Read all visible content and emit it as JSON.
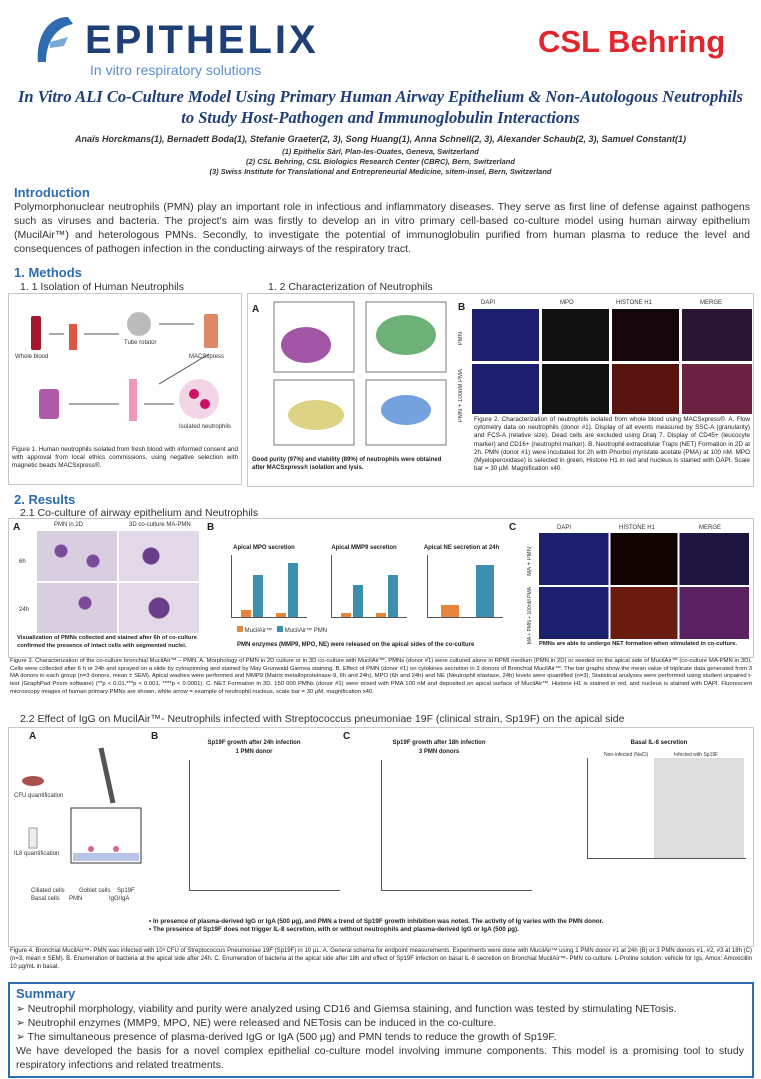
{
  "header": {
    "logo_left": "EPITHELIX",
    "logo_tagline": "In vitro respiratory solutions",
    "logo_right": "CSL Behring",
    "title": "In Vitro ALI Co-Culture Model Using Primary Human Airway Epithelium & Non-Autologous Neutrophils to Study Host-Pathogen and Immunoglobulin Interactions",
    "authors": "Anaïs Horckmans(1), Bernadett Boda(1), Stefanie Graeter(2, 3), Song Huang(1), Anna Schnell(2, 3), Alexander Schaub(2, 3), Samuel Constant(1)",
    "affiliations": [
      "(1) Epithelix Sàrl, Plan-les-Ouates, Geneva, Switzerland",
      "(2) CSL Behring, CSL Biologics Research Center (CBRC), Bern, Switzerland",
      "(3) Swiss Institute for Translational and Entrepreneurial Medicine, sitem-insel, Bern, Switzerland"
    ]
  },
  "intro": {
    "heading": "Introduction",
    "text": "Polymorphonuclear neutrophils (PMN) play an important role in infectious and inflammatory diseases. They serve as first line of defense against pathogens such as viruses and bacteria. The project's aim was firstly to develop an in vitro primary cell-based co-culture model using human airway epithelium (MucilAir™) and heterologous PMNs. Secondly, to investigate the potential of immunoglobulin purified from human plasma to reduce the level and consequences of pathogen infection in the conducting airways of the respiratory tract."
  },
  "methods": {
    "heading": "1. Methods",
    "sub1": "1. 1 Isolation of Human Neutrophils",
    "sub2": "1. 2 Characterization of Neutrophils",
    "fig1_labels": [
      "Whole blood",
      "MACSxpress",
      "Tube rotator",
      "Isolated neutrophils"
    ],
    "fig1_caption": "Figure 1. Human neutrophils isolated from fresh blood with informed consent and with approval from local ethics commissions, using negative selection with magnetic beads MACSxpress®.",
    "fig2_panels": [
      "A",
      "B"
    ],
    "fig2_columns": [
      "DAPI",
      "MPO",
      "HISTONE H1",
      "MERGE"
    ],
    "fig2_rows": [
      "PMN",
      "PMN + 100nM PMA"
    ],
    "fig2_note": "Good purity (97%) and viability (89%) of neutrophils were obtained after MACSxpress® isolation and lysis.",
    "fig2_caption": "Figure 2. Characterization of neutrophils isolated from whole blood using MACSxpress®. A. Flow cytometry data on neutrophils (donor #1). Display of all events measured by SSC-A (granularity) and FCS-A (relative size). Dead cells are excluded using Draq 7. Display of CD45+ (leucocyte marker) and CD16+ (neutrophil marker). B. Neutrophil extracellular Traps (NET) Formation in 2D at 2h. PMN (donor #1) were incubated for 2h with Phorbol myristate acetate (PMA) at 100 nM. MPO (Myeloperoxidase) is selected in green, Histone H1 in red and nucleus is stained with DAPI. Scale bar = 30 µM. Magnification x40."
  },
  "results": {
    "heading": "2. Results",
    "sub1": "2.1 Co-culture of airway epithelium  and Neutrophils",
    "fig3_panels": [
      "A",
      "B",
      "C"
    ],
    "fig3_image_cols": [
      "PMN in 2D",
      "3D co-culture MA-PMN"
    ],
    "fig3_image_rows": [
      "6h",
      "24h"
    ],
    "fig3_charts": [
      "Apical MPO secretion",
      "Apical MMP9 secretion",
      "Apical NE secretion at 24h"
    ],
    "fig3_legend": [
      "MucilAir™",
      "MucilAir™ PMN"
    ],
    "fig3_c_columns": [
      "DAPI",
      "HISTONE H1",
      "MERGE"
    ],
    "fig3_c_rows": [
      "MA + PMN",
      "MA + PMN + 100nM PMA"
    ],
    "fig3_notes": [
      "Visualization of PMNs collected and stained after 6h of co-culture confirmed the presence of intact cells with segmented nuclei.",
      "PMN enzymes (MMP9, MPO, NE) were released on the apical sides of the co-culture",
      "PMNs are able to undergo NET formation when stimulated in co-culture."
    ],
    "fig3_caption": "Figure 3. Characterization of the co-culture bronchial MucilAir™ – PMN. A. Morphology of PMN in 2D culture or in 3D co-culture with MucilAir™. PMNs (donor #1) were cultured alone in RPMI medium (PMN in 2D) or seeded on the apical side of MucilAir™ (co-culture MA-PMN in 3D). Cells were collected after 6 h or 24h and sprayed on a slide by cytospinning and stained by May Grunwald Giemsa staining. B. Effect of PMN (donor #1) on cytokines secretion in 3 donors of Bronchial MucilAir™. The bar graphs show the mean value of triplicate data generated from 3 MA donors in each group (n=3 donors, mean ± SEM). Apical washes were performed and MMP9 (Matrix metalloproteinase-9, 6h and 24h), MPO (6h and 24h) and NE (Neutrophil elastase, 24h) levels were quantified (n=3). Statistical analyses were performed using student unpaired t-test (GraphPad Prism software) (**p < 0.01,***p < 0.001, ****p < 0.0001). C. NET Formation in 3D. 150 000 PMNs (donor #1) were mixed with PMA 100 nM and deposited on apical surface of MucilAir™. Histone H1 is stained in red, and nucleus is stained with DAPI. Fluorescent microscopy images of human primary PMNs are shown, white arrow = example of neutrophil nucleus, scale bar = 30 µM, magnification x40.",
    "sub2": "2.2 Effect of IgG on MucilAir™- Neutrophils infected  with Streptococcus pneumoniae 19F (clinical strain, Sp19F) on the apical side",
    "fig4_panels": [
      "A",
      "B",
      "C"
    ],
    "fig4_schema_labels": [
      "CFU quantification",
      "IL8 quantification",
      "Basal cells",
      "PMN",
      "Goblet cells",
      "Ciliated cells",
      "IgG/IgA",
      "Sp19F"
    ],
    "fig4_charts": [
      "Sp19F growth after 24h infection",
      "1 PMN donor",
      "Sp19F growth after 18h infection",
      "3 PMN donors",
      "Basal IL-8 secretion",
      "Non-infected (NaCl)",
      "Infected with Sp19F"
    ],
    "fig4_notes": [
      "In presence of plasma-derived IgG or IgA (500 µg), and PMN a trend of Sp19F growth inhibition was noted. The activity of Ig varies with the PMN donor.",
      "The presence of Sp19F does not trigger IL-8 secretion, with or without neutrophils and plasma-derived IgG or IgA (500 µg)."
    ],
    "fig4_caption": "Figure 4. Bronchial MucilAir™- PMN was infected with 10³ CFU of Streptococcus Pneumoniae 19F (Sp19F) in 10 µL. A. General schema for endpoint measurements. Experiments were done with MucilAir™ using 1 PMN donor #1 at 24h (B) or 3 PMN donors #1, #2, #3 at 18h (C) (n=3, mean ± SEM). B. Enumeration of bacteria at the apical side after 24h. C. Enumeration of bacteria at the apical side after 18h and effect of Sp19F infection on basal IL-8 secretion on Bronchial MucilAir™- PMN co-culture. L-Proline solution: vehicle for Igs, Amox: Amoxicillin 10 µg/mL in basal."
  },
  "summary": {
    "heading": "Summary",
    "bullets": [
      "Neutrophil morphology, viability and purity were analyzed using CD16 and Giemsa staining, and function was tested by stimulating NETosis.",
      "Neutrophil enzymes (MMP9, MPO, NE) were released and NETosis can be induced in the co-culture.",
      "The simultaneous presence of plasma-derived IgG or IgA (500 µg) and PMN tends to reduce the growth of Sp19F."
    ],
    "conclusion": "We have developed the basis for a novel complex epithelial co-culture model involving immune components. This model is a promising tool to study respiratory infections and related treatments."
  }
}
